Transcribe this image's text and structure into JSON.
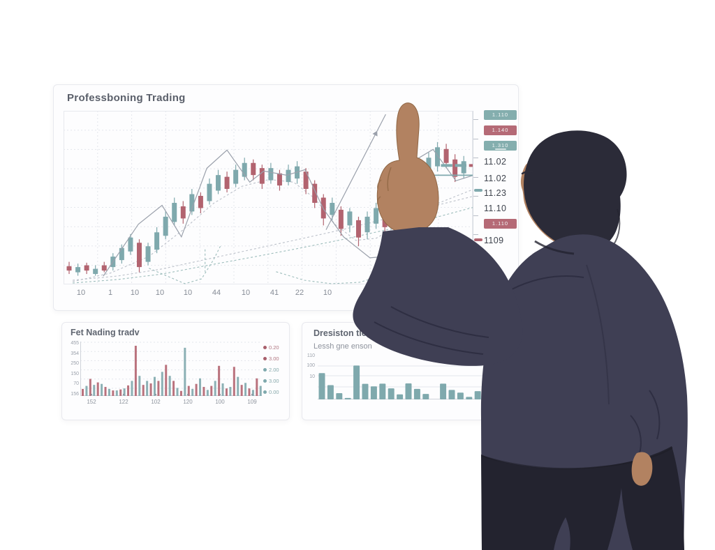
{
  "colors": {
    "up": "#7fa9ad",
    "down": "#b2636f",
    "badge_teal": "#84aeae",
    "badge_red": "#b56a76",
    "grid": "#e3e6ec",
    "axis": "#cfd3da",
    "legend_red": "#a85f6b",
    "legend_teal": "#7fa9ad"
  },
  "main_panel": {
    "title": "Professboning Trading",
    "x_labels": [
      "10",
      "1",
      "10",
      "10",
      "10",
      "44",
      "10",
      "41",
      "22",
      "10"
    ],
    "price_column": [
      {
        "type": "badge",
        "variant": "teal",
        "label": "1.110"
      },
      {
        "type": "badge",
        "variant": "red",
        "label": "1.140"
      },
      {
        "type": "badge",
        "variant": "teal",
        "label": "1.310",
        "sub": true
      },
      {
        "type": "text",
        "label": "11.02"
      },
      {
        "type": "text",
        "label": "11.02"
      },
      {
        "type": "text",
        "label": "11.23"
      },
      {
        "type": "text",
        "label": "11.10"
      },
      {
        "type": "badge",
        "variant": "red",
        "label": "1.110"
      },
      {
        "type": "text",
        "label": "1109"
      }
    ]
  },
  "volume_panel": {
    "title": "Fet Nading tradv",
    "y_labels": [
      "455",
      "354",
      "250",
      "150",
      "70",
      "156"
    ],
    "x_labels": [
      "152",
      "122",
      "102",
      "120",
      "100",
      "109"
    ],
    "legend": [
      {
        "color": "red",
        "label": "0.20"
      },
      {
        "color": "red",
        "label": "3.00"
      },
      {
        "color": "teal",
        "label": "2.00"
      },
      {
        "color": "teal",
        "label": "3.00"
      },
      {
        "color": "teal",
        "label": "0.00"
      }
    ]
  },
  "distribution_panel": {
    "title": "Dresiston tleg oring",
    "subtitle": "Lessh gne enson",
    "y_labels": [
      "110",
      "100",
      "10"
    ]
  },
  "chart_data": [
    {
      "type": "candlestick",
      "title": "Professboning Trading",
      "ylim": [
        0,
        100
      ],
      "x_tick_labels": [
        "10",
        "1",
        "10",
        "10",
        "10",
        "44",
        "10",
        "41",
        "22",
        "10"
      ],
      "up_color": "#7fa9ad",
      "down_color": "#b2636f",
      "candles": [
        [
          10.5,
          13,
          6,
          8
        ],
        [
          7,
          12,
          5,
          10
        ],
        [
          11,
          12.5,
          6,
          8
        ],
        [
          6,
          11,
          5,
          9
        ],
        [
          11,
          13,
          7,
          8
        ],
        [
          10,
          18,
          8,
          16
        ],
        [
          14,
          23,
          12,
          21
        ],
        [
          19,
          29,
          17,
          27
        ],
        [
          24,
          26,
          7,
          10
        ],
        [
          13,
          24,
          11,
          22
        ],
        [
          20,
          33,
          18,
          30
        ],
        [
          28,
          42,
          26,
          39
        ],
        [
          36,
          50,
          34,
          47
        ],
        [
          45,
          48,
          35,
          38
        ],
        [
          42,
          55,
          40,
          52
        ],
        [
          51,
          53,
          41,
          44
        ],
        [
          48,
          61,
          46,
          58
        ],
        [
          54,
          66,
          52,
          63
        ],
        [
          62,
          65,
          53,
          55
        ],
        [
          58,
          69,
          56,
          66
        ],
        [
          62,
          73,
          60,
          70
        ],
        [
          70,
          72,
          60,
          63
        ],
        [
          67,
          69,
          55,
          58
        ],
        [
          60,
          70,
          58,
          67
        ],
        [
          64,
          66,
          54,
          57
        ],
        [
          59,
          69,
          57,
          66
        ],
        [
          61,
          71,
          58,
          68
        ],
        [
          65,
          67,
          52,
          55
        ],
        [
          58,
          60,
          44,
          47
        ],
        [
          50,
          52,
          34,
          38
        ],
        [
          40,
          50,
          37,
          47
        ],
        [
          43,
          45,
          28,
          32
        ],
        [
          34,
          44,
          30,
          42
        ],
        [
          37,
          39,
          22,
          27
        ],
        [
          30,
          42,
          26,
          39
        ],
        [
          35,
          47,
          32,
          44
        ],
        [
          41,
          43,
          30,
          33
        ],
        [
          38,
          50,
          35,
          47
        ],
        [
          43,
          56,
          40,
          53
        ],
        [
          49,
          62,
          46,
          59
        ],
        [
          55,
          69,
          52,
          66
        ],
        [
          62,
          76,
          59,
          73
        ],
        [
          68,
          82,
          65,
          79
        ],
        [
          78,
          81,
          67,
          70
        ],
        [
          72,
          75,
          59,
          62
        ],
        [
          64,
          74,
          61,
          71
        ]
      ],
      "overlays": [
        {
          "name": "ma-upper",
          "style": "gray-dash",
          "points": [
            [
              0.4,
              1.6
            ],
            [
              4.7,
              6.5
            ],
            [
              9.1,
              16.1
            ],
            [
              13,
              31.5
            ],
            [
              16.5,
              46.8
            ],
            [
              19.7,
              56.5
            ],
            [
              22.8,
              60.5
            ],
            [
              25.6,
              58.9
            ],
            [
              28,
              49.6
            ],
            [
              30.3,
              34.7
            ],
            [
              32.7,
              25.4
            ],
            [
              35,
              26.6
            ],
            [
              37.4,
              33.5
            ],
            [
              39.8,
              40.3
            ],
            [
              42.1,
              46.8
            ],
            [
              44.5,
              51.6
            ],
            [
              46.1,
              54.8
            ]
          ]
        },
        {
          "name": "ma-lower-gray",
          "style": "gray-dash",
          "points": [
            [
              0.4,
              2.4
            ],
            [
              5.5,
              4.8
            ],
            [
              10.6,
              8.9
            ],
            [
              15.7,
              14.5
            ],
            [
              20.9,
              20.2
            ],
            [
              26,
              25.8
            ],
            [
              31.1,
              31.5
            ],
            [
              36.2,
              37.9
            ],
            [
              41.3,
              44.8
            ],
            [
              46.1,
              50.8
            ]
          ]
        },
        {
          "name": "ma-lower-teal",
          "style": "teal-dash",
          "points": [
            [
              0.4,
              0.8
            ],
            [
              5.5,
              2.8
            ],
            [
              10.6,
              6
            ],
            [
              15.7,
              10.9
            ],
            [
              20.9,
              15.7
            ],
            [
              26,
              20.6
            ],
            [
              31.1,
              25.8
            ],
            [
              36.2,
              31.5
            ],
            [
              41.3,
              37.9
            ],
            [
              46.1,
              44.4
            ]
          ]
        },
        {
          "name": "dip-left",
          "style": "teal-dash",
          "points": [
            [
              9.1,
              9.3
            ],
            [
              11,
              5.2
            ],
            [
              13.2,
              0.4
            ],
            [
              15.1,
              3.2
            ],
            [
              16.5,
              14.5
            ],
            [
              17.3,
              22.6
            ]
          ]
        },
        {
          "name": "dip-right",
          "style": "teal-dash",
          "points": [
            [
              23.6,
              7.3
            ],
            [
              26.8,
              2.4
            ],
            [
              29.9,
              0.4
            ],
            [
              33.1,
              1.2
            ],
            [
              35.8,
              5.2
            ],
            [
              38.2,
              14.5
            ],
            [
              40.2,
              23.4
            ]
          ]
        },
        {
          "name": "marker-left",
          "style": "teal-dash",
          "points": [
            [
              15.5,
              20.2
            ],
            [
              15.5,
              7.3
            ]
          ]
        },
        {
          "name": "marker-right",
          "style": "teal-dash",
          "points": [
            [
              39.1,
              25.4
            ],
            [
              39.1,
              8.1
            ]
          ]
        },
        {
          "name": "peak-trace",
          "style": "solid",
          "points": [
            [
              3.9,
              4.8
            ],
            [
              7.9,
              34.7
            ],
            [
              10.6,
              45.6
            ],
            [
              12.8,
              27.4
            ],
            [
              15.7,
              66.9
            ],
            [
              18,
              77.4
            ],
            [
              20.6,
              58.9
            ],
            [
              22.2,
              65.3
            ],
            [
              24.8,
              62.9
            ],
            [
              26.9,
              66.1
            ],
            [
              29,
              43.5
            ],
            [
              31.3,
              27.4
            ],
            [
              34.3,
              15.3
            ],
            [
              37,
              16.5
            ],
            [
              40,
              16.1
            ]
          ]
        },
        {
          "name": "breakout-line",
          "style": "solid",
          "arrow": true,
          "points": [
            [
              29.3,
              31.5
            ],
            [
              36.1,
              98
            ]
          ]
        },
        {
          "name": "right-triangle",
          "style": "solid",
          "points": [
            [
              35.8,
              60.5
            ],
            [
              41.5,
              77.8
            ],
            [
              44.1,
              59.7
            ],
            [
              46.1,
              62.9
            ]
          ]
        },
        {
          "name": "support-line",
          "style": "flat",
          "points": [
            [
              37,
              62.9
            ],
            [
              46.6,
              62.9
            ]
          ]
        },
        {
          "name": "tag-dash-1",
          "style": "thick-teal",
          "points": [
            [
              42.4,
              68.5
            ],
            [
              43.7,
              68.5
            ]
          ]
        },
        {
          "name": "tag-dash-2",
          "style": "thick-teal",
          "points": [
            [
              44,
              68.5
            ],
            [
              45.3,
              68.5
            ]
          ]
        },
        {
          "name": "tag-dash-3",
          "style": "thick-red",
          "points": [
            [
              45.6,
              68.5
            ],
            [
              46.8,
              68.5
            ]
          ]
        }
      ]
    },
    {
      "type": "bar",
      "name": "volume",
      "title": "Fet Nading tradv",
      "ylim": [
        0,
        100
      ],
      "y_tick_labels": [
        "455",
        "354",
        "250",
        "150",
        "70",
        "156"
      ],
      "x_tick_labels": [
        "152",
        "122",
        "102",
        "120",
        "100",
        "109"
      ],
      "bar_color_map": {
        "r": "#b2636f",
        "t": "#7fa9ad"
      },
      "values": [
        14,
        20,
        34,
        22,
        27,
        24,
        18,
        14,
        11,
        11,
        13,
        15,
        21,
        30,
        100,
        40,
        22,
        30,
        25,
        38,
        30,
        48,
        62,
        40,
        30,
        16,
        10,
        96,
        20,
        14,
        24,
        35,
        18,
        12,
        20,
        30,
        60,
        25,
        15,
        18,
        58,
        38,
        22,
        26,
        15,
        12,
        35,
        20
      ],
      "bar_colors": [
        "r",
        "t",
        "r",
        "t",
        "r",
        "t",
        "r",
        "t",
        "r",
        "t",
        "r",
        "t",
        "r",
        "t",
        "r",
        "t",
        "r",
        "t",
        "r",
        "t",
        "r",
        "t",
        "r",
        "t",
        "r",
        "t",
        "r",
        "t",
        "r",
        "t",
        "r",
        "t",
        "r",
        "t",
        "r",
        "t",
        "r",
        "t",
        "r",
        "t",
        "r",
        "t",
        "r",
        "t",
        "r",
        "t",
        "r",
        "t"
      ],
      "legend": [
        {
          "color": "#a85f6b",
          "label": "0.20"
        },
        {
          "color": "#a85f6b",
          "label": "3.00"
        },
        {
          "color": "#7fa9ad",
          "label": "2.00"
        },
        {
          "color": "#7fa9ad",
          "label": "3.00"
        },
        {
          "color": "#7fa9ad",
          "label": "0.00"
        }
      ]
    },
    {
      "type": "bar",
      "name": "distribution",
      "title": "Dresiston tleg oring",
      "subtitle": "Lessh gne enson",
      "ylim": [
        0,
        150
      ],
      "y_tick_labels": [
        "110",
        "100",
        "10"
      ],
      "color": "#7fa9ad",
      "values": [
        105,
        57,
        25,
        6,
        135,
        62,
        52,
        63,
        44,
        20,
        64,
        42,
        22,
        null,
        63,
        38,
        27,
        10,
        33
      ]
    }
  ]
}
